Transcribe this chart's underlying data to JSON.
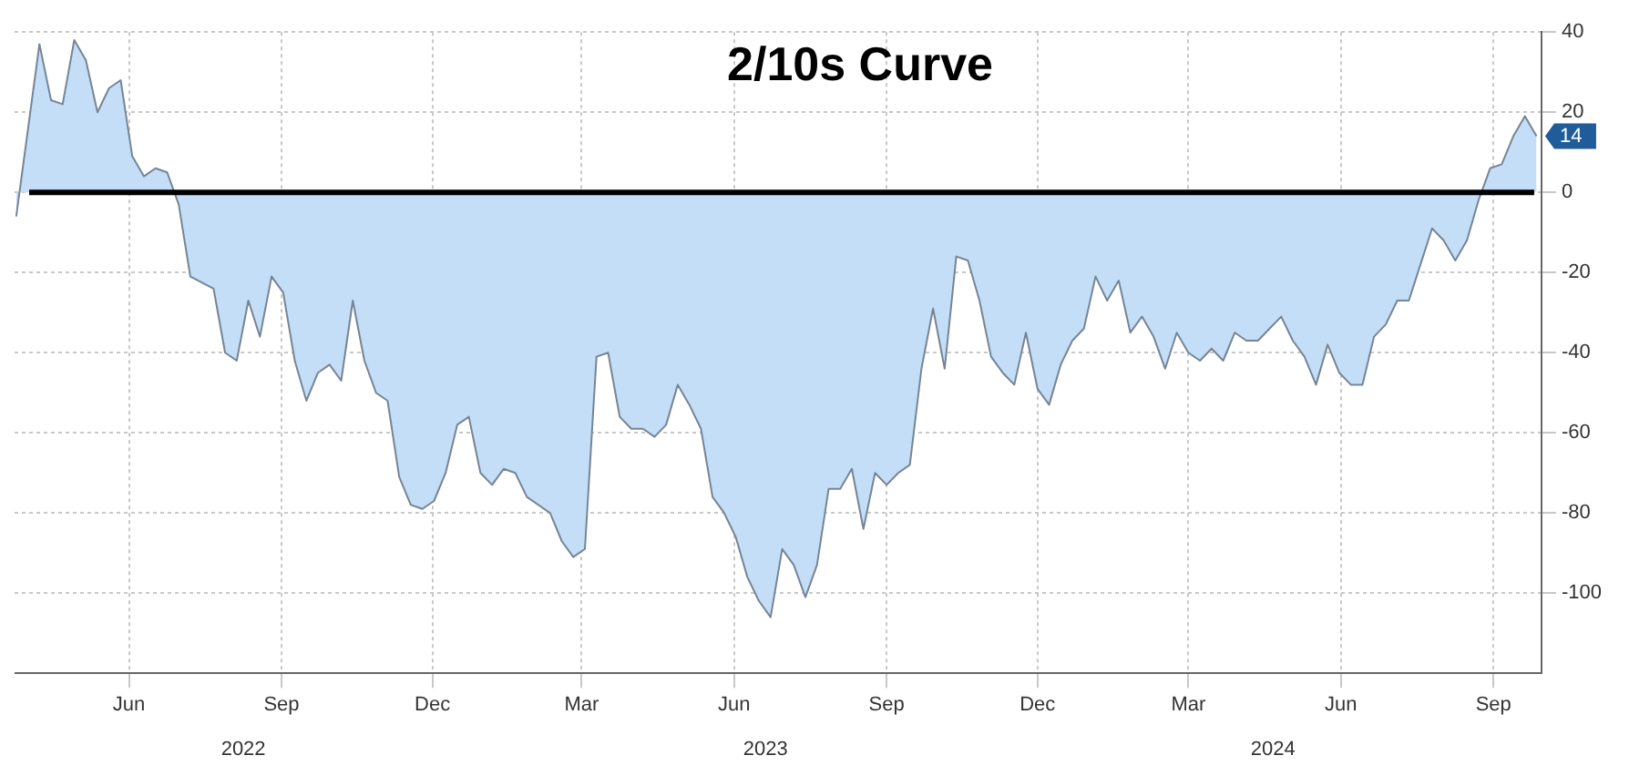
{
  "chart_data": {
    "type": "area",
    "title": "2/10s Curve",
    "x": [
      "2022-04-08",
      "2022-04-22",
      "2022-04-29",
      "2022-05-06",
      "2022-05-13",
      "2022-05-20",
      "2022-05-27",
      "2022-06-03",
      "2022-06-10",
      "2022-06-17",
      "2022-06-24",
      "2022-07-01",
      "2022-07-08",
      "2022-07-15",
      "2022-07-22",
      "2022-08-05",
      "2022-08-12",
      "2022-08-19",
      "2022-08-26",
      "2022-09-02",
      "2022-09-09",
      "2022-09-16",
      "2022-09-23",
      "2022-09-30",
      "2022-10-07",
      "2022-10-14",
      "2022-10-21",
      "2022-10-28",
      "2022-11-04",
      "2022-11-11",
      "2022-11-18",
      "2022-11-25",
      "2022-12-02",
      "2022-12-09",
      "2022-12-16",
      "2022-12-23",
      "2022-12-30",
      "2023-01-06",
      "2023-01-13",
      "2023-01-20",
      "2023-01-27",
      "2023-02-03",
      "2023-02-10",
      "2023-02-24",
      "2023-03-03",
      "2023-03-10",
      "2023-03-17",
      "2023-03-24",
      "2023-03-31",
      "2023-04-07",
      "2023-04-14",
      "2023-04-21",
      "2023-04-28",
      "2023-05-05",
      "2023-05-12",
      "2023-05-19",
      "2023-05-26",
      "2023-06-02",
      "2023-06-09",
      "2023-06-16",
      "2023-06-23",
      "2023-06-30",
      "2023-07-07",
      "2023-07-14",
      "2023-07-21",
      "2023-07-28",
      "2023-08-04",
      "2023-08-11",
      "2023-08-18",
      "2023-08-25",
      "2023-09-01",
      "2023-09-08",
      "2023-09-15",
      "2023-09-22",
      "2023-09-29",
      "2023-10-06",
      "2023-10-13",
      "2023-10-20",
      "2023-10-27",
      "2023-11-03",
      "2023-11-10",
      "2023-11-17",
      "2023-11-24",
      "2023-12-01",
      "2023-12-08",
      "2023-12-15",
      "2023-12-22",
      "2023-12-29",
      "2024-01-05",
      "2024-01-12",
      "2024-01-19",
      "2024-01-26",
      "2024-02-02",
      "2024-02-09",
      "2024-02-16",
      "2024-02-23",
      "2024-03-01",
      "2024-03-08",
      "2024-03-15",
      "2024-03-22",
      "2024-03-29",
      "2024-04-05",
      "2024-04-12",
      "2024-04-19",
      "2024-04-26",
      "2024-05-03",
      "2024-05-10",
      "2024-05-17",
      "2024-05-24",
      "2024-05-31",
      "2024-06-07",
      "2024-06-14",
      "2024-06-21",
      "2024-06-28",
      "2024-07-05",
      "2024-07-12",
      "2024-07-19",
      "2024-07-26",
      "2024-08-02",
      "2024-08-09",
      "2024-08-16",
      "2024-08-23",
      "2024-08-30",
      "2024-09-06",
      "2024-09-13",
      "2024-09-20",
      "2024-09-27",
      "2024-10-04",
      "2024-10-11"
    ],
    "series": [
      {
        "color": "#c4def8",
        "values": [
          -6,
          37,
          23,
          22,
          38,
          33,
          20,
          26,
          28,
          9,
          4,
          6,
          5,
          -3,
          -21,
          -24,
          -40,
          -42,
          -27,
          -36,
          -21,
          -25,
          -42,
          -52,
          -45,
          -43,
          -47,
          -27,
          -42,
          -50,
          -52,
          -71,
          -78,
          -79,
          -77,
          -70,
          -58,
          -56,
          -70,
          -73,
          -69,
          -70,
          -76,
          -80,
          -87,
          -91,
          -89,
          -41,
          -40,
          -56,
          -59,
          -59,
          -61,
          -58,
          -48,
          -53,
          -59,
          -76,
          -80,
          -86,
          -96,
          -102,
          -106,
          -89,
          -93,
          -101,
          -93,
          -74,
          -74,
          -69,
          -84,
          -70,
          -73,
          -70,
          -68,
          -44,
          -29,
          -44,
          -16,
          -17,
          -27,
          -41,
          -45,
          -48,
          -35,
          -49,
          -53,
          -43,
          -37,
          -34,
          -21,
          -27,
          -22,
          -35,
          -31,
          -36,
          -44,
          -35,
          -40,
          -42,
          -39,
          -42,
          -35,
          -37,
          -37,
          -34,
          -31,
          -37,
          -41,
          -48,
          -38,
          -45,
          -48,
          -48,
          -36,
          -33,
          -27,
          -27,
          -18,
          -9,
          -12,
          -17,
          -12,
          -2,
          6,
          7,
          14,
          19,
          14
        ]
      }
    ],
    "xlim": [
      "2022-04-07",
      "2024-10-14"
    ],
    "xticks": [
      {
        "value": "2022-06-15",
        "label": "Jun"
      },
      {
        "value": "2022-09-15",
        "label": "Sep"
      },
      {
        "value": "2022-12-15",
        "label": "Dec"
      },
      {
        "value": "2023-03-15",
        "label": "Mar"
      },
      {
        "value": "2023-06-15",
        "label": "Jun"
      },
      {
        "value": "2023-09-15",
        "label": "Sep"
      },
      {
        "value": "2023-12-15",
        "label": "Dec"
      },
      {
        "value": "2024-03-15",
        "label": "Mar"
      },
      {
        "value": "2024-06-15",
        "label": "Jun"
      },
      {
        "value": "2024-09-15",
        "label": "Sep"
      }
    ],
    "x2lim": [
      "2022-04-07",
      "2024-10-14"
    ],
    "x2ticks": [
      {
        "value": "2022-08-23",
        "label": "2022"
      },
      {
        "value": "2023-07-04",
        "label": "2023"
      },
      {
        "value": "2024-05-05",
        "label": "2024"
      }
    ],
    "ylim": [
      -120,
      40
    ],
    "yticks": [
      -100,
      -80,
      -60,
      -40,
      -20,
      0,
      20,
      40
    ],
    "grid": true,
    "legend": false,
    "ref_lines": [
      {
        "axis": "y",
        "value": 0,
        "color": "#000000"
      }
    ],
    "annotations": [
      {
        "text": "14",
        "x": "2024-10-11",
        "y": 14
      }
    ]
  }
}
